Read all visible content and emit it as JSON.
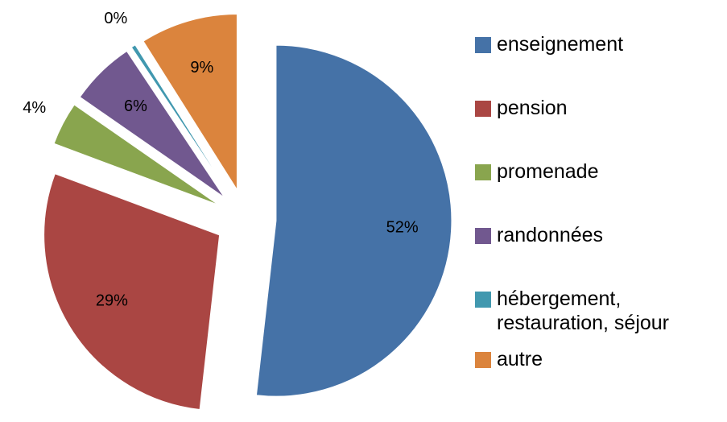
{
  "chart_data": {
    "type": "pie",
    "categories": [
      "enseignement",
      "pension",
      "promenade",
      "randonnées",
      "hébergement, restauration, séjour",
      "autre"
    ],
    "values": [
      52,
      29,
      4,
      6,
      0.4,
      9
    ],
    "value_labels": [
      "52%",
      "29%",
      "4%",
      "6%",
      "0%",
      "9%"
    ],
    "colors": [
      "#4572a7",
      "#aa4643",
      "#89a54e",
      "#71588f",
      "#4198af",
      "#db843d"
    ],
    "legend": "right"
  }
}
